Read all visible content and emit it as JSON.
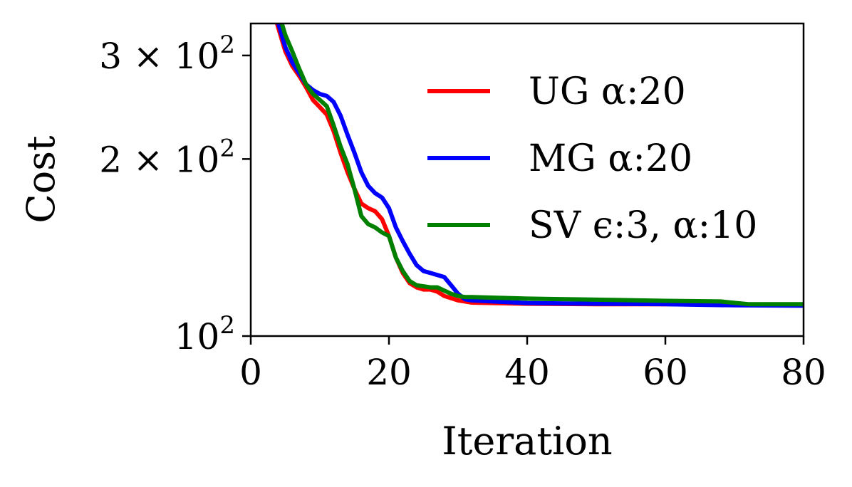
{
  "chart_data": {
    "type": "line",
    "xlabel": "Iteration",
    "ylabel": "Cost",
    "xlim": [
      0,
      80
    ],
    "ylim": [
      100,
      340
    ],
    "yscale": "log",
    "grid": false,
    "legend_position": "upper-right",
    "x_ticks": [
      {
        "value": 0,
        "label": "0"
      },
      {
        "value": 20,
        "label": "20"
      },
      {
        "value": 40,
        "label": "40"
      },
      {
        "value": 60,
        "label": "60"
      },
      {
        "value": 80,
        "label": "80"
      }
    ],
    "y_ticks": [
      {
        "value": 100,
        "base": "10",
        "exp": "2",
        "prefix": ""
      },
      {
        "value": 200,
        "base": "10",
        "exp": "2",
        "prefix": "2 × "
      },
      {
        "value": 300,
        "base": "10",
        "exp": "2",
        "prefix": "3 × "
      }
    ],
    "series": [
      {
        "name": "UG α:20",
        "color": "#ff0000",
        "points": [
          [
            3.8,
            340
          ],
          [
            5,
            305
          ],
          [
            6,
            288
          ],
          [
            7,
            277
          ],
          [
            8,
            265
          ],
          [
            9,
            252
          ],
          [
            10,
            245
          ],
          [
            11,
            238
          ],
          [
            12,
            223
          ],
          [
            13,
            205
          ],
          [
            14,
            190
          ],
          [
            15,
            178
          ],
          [
            16,
            168
          ],
          [
            17,
            165
          ],
          [
            18,
            163
          ],
          [
            19,
            158
          ],
          [
            20,
            148
          ],
          [
            21,
            136
          ],
          [
            22,
            128
          ],
          [
            23,
            123
          ],
          [
            24,
            121
          ],
          [
            25,
            120
          ],
          [
            26,
            120
          ],
          [
            27,
            119
          ],
          [
            28,
            117
          ],
          [
            29,
            116
          ],
          [
            30,
            115
          ],
          [
            31,
            114.5
          ],
          [
            32,
            114
          ],
          [
            35,
            113.8
          ],
          [
            40,
            113.5
          ],
          [
            50,
            113.3
          ],
          [
            60,
            113.3
          ],
          [
            70,
            113.1
          ],
          [
            80,
            113
          ]
        ]
      },
      {
        "name": "MG α:20",
        "color": "#0000ff",
        "points": [
          [
            4,
            340
          ],
          [
            5,
            310
          ],
          [
            6,
            292
          ],
          [
            7,
            280
          ],
          [
            8,
            268
          ],
          [
            9,
            262
          ],
          [
            10,
            258
          ],
          [
            11,
            256
          ],
          [
            12,
            250
          ],
          [
            13,
            237
          ],
          [
            14,
            220
          ],
          [
            15,
            205
          ],
          [
            16,
            190
          ],
          [
            17,
            180
          ],
          [
            18,
            175
          ],
          [
            19,
            172
          ],
          [
            20,
            165
          ],
          [
            21,
            153
          ],
          [
            22,
            145
          ],
          [
            23,
            138
          ],
          [
            24,
            132
          ],
          [
            25,
            129
          ],
          [
            26,
            128
          ],
          [
            27,
            127
          ],
          [
            28,
            126
          ],
          [
            29,
            122
          ],
          [
            30,
            118
          ],
          [
            31,
            115.5
          ],
          [
            32,
            115
          ],
          [
            35,
            114.5
          ],
          [
            40,
            113.8
          ],
          [
            50,
            113.5
          ],
          [
            60,
            113.3
          ],
          [
            70,
            112.8
          ],
          [
            80,
            112.6
          ]
        ]
      },
      {
        "name": "SV ϵ:3, α:10",
        "color": "#008000",
        "points": [
          [
            4.5,
            340
          ],
          [
            5,
            325
          ],
          [
            6,
            305
          ],
          [
            7,
            285
          ],
          [
            8,
            268
          ],
          [
            9,
            258
          ],
          [
            10,
            252
          ],
          [
            11,
            246
          ],
          [
            12,
            228
          ],
          [
            13,
            210
          ],
          [
            14,
            196
          ],
          [
            15,
            178
          ],
          [
            16,
            160
          ],
          [
            17,
            155
          ],
          [
            18,
            153
          ],
          [
            19,
            150
          ],
          [
            20,
            148
          ],
          [
            21,
            136
          ],
          [
            22,
            129
          ],
          [
            23,
            124
          ],
          [
            24,
            122
          ],
          [
            25,
            121.5
          ],
          [
            26,
            121
          ],
          [
            27,
            121
          ],
          [
            28,
            119.5
          ],
          [
            29,
            118
          ],
          [
            30,
            117
          ],
          [
            31,
            116.5
          ],
          [
            32,
            116.5
          ],
          [
            40,
            115.8
          ],
          [
            50,
            115.3
          ],
          [
            60,
            114.8
          ],
          [
            68,
            114.5
          ],
          [
            72,
            113.3
          ],
          [
            80,
            113.3
          ]
        ]
      }
    ]
  }
}
